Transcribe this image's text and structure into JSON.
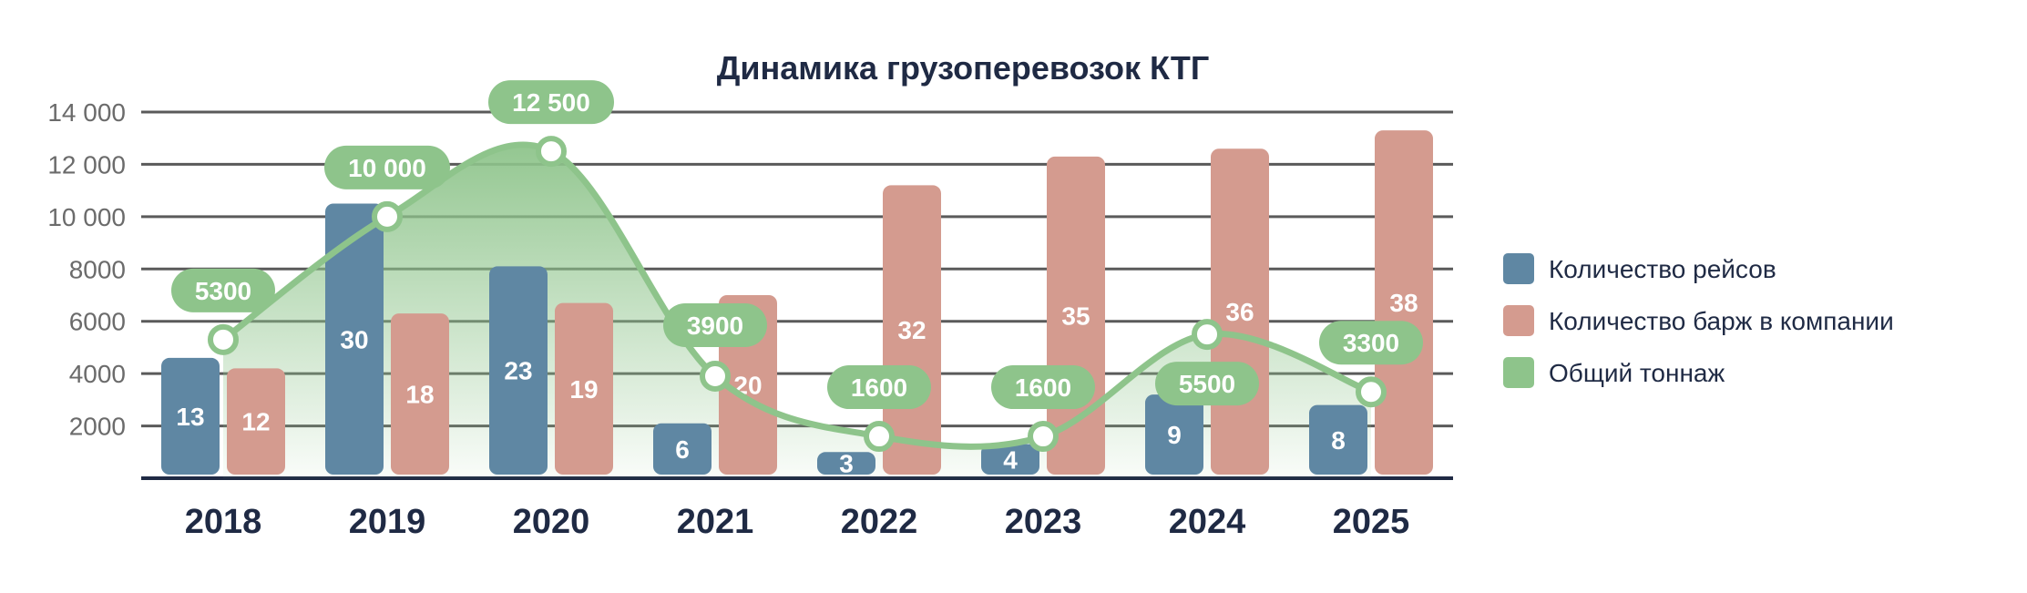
{
  "chart_data": {
    "type": "bar",
    "title": "Динамика грузоперевозок КТГ",
    "categories": [
      "2018",
      "2019",
      "2020",
      "2021",
      "2022",
      "2023",
      "2024",
      "2025"
    ],
    "y_ticks": [
      "14 000",
      "12 000",
      "10 000",
      "8000",
      "6000",
      "4000",
      "2000"
    ],
    "ylim": [
      0,
      14000
    ],
    "grid": true,
    "legend_position": "right",
    "series": [
      {
        "name": "Количество рейсов",
        "kind": "bar",
        "color": "#5f87a3",
        "values": [
          13,
          30,
          23,
          6,
          3,
          4,
          9,
          8
        ],
        "bar_heights": [
          4600,
          10500,
          8100,
          2100,
          1000,
          1300,
          3200,
          2800
        ]
      },
      {
        "name": "Количество барж в компании",
        "kind": "bar",
        "color": "#d49b8f",
        "values": [
          12,
          18,
          19,
          20,
          32,
          35,
          36,
          38
        ],
        "bar_heights": [
          4200,
          6300,
          6700,
          7000,
          11200,
          12300,
          12600,
          13300
        ]
      },
      {
        "name": "Общий тоннаж",
        "kind": "line",
        "color": "#8ec48b",
        "values": [
          5300,
          10000,
          12500,
          3900,
          1600,
          1600,
          5500,
          3300
        ],
        "labels": [
          "5300",
          "10 000",
          "12 500",
          "3900",
          "1600",
          "1600",
          "5500",
          "3300"
        ]
      }
    ]
  }
}
